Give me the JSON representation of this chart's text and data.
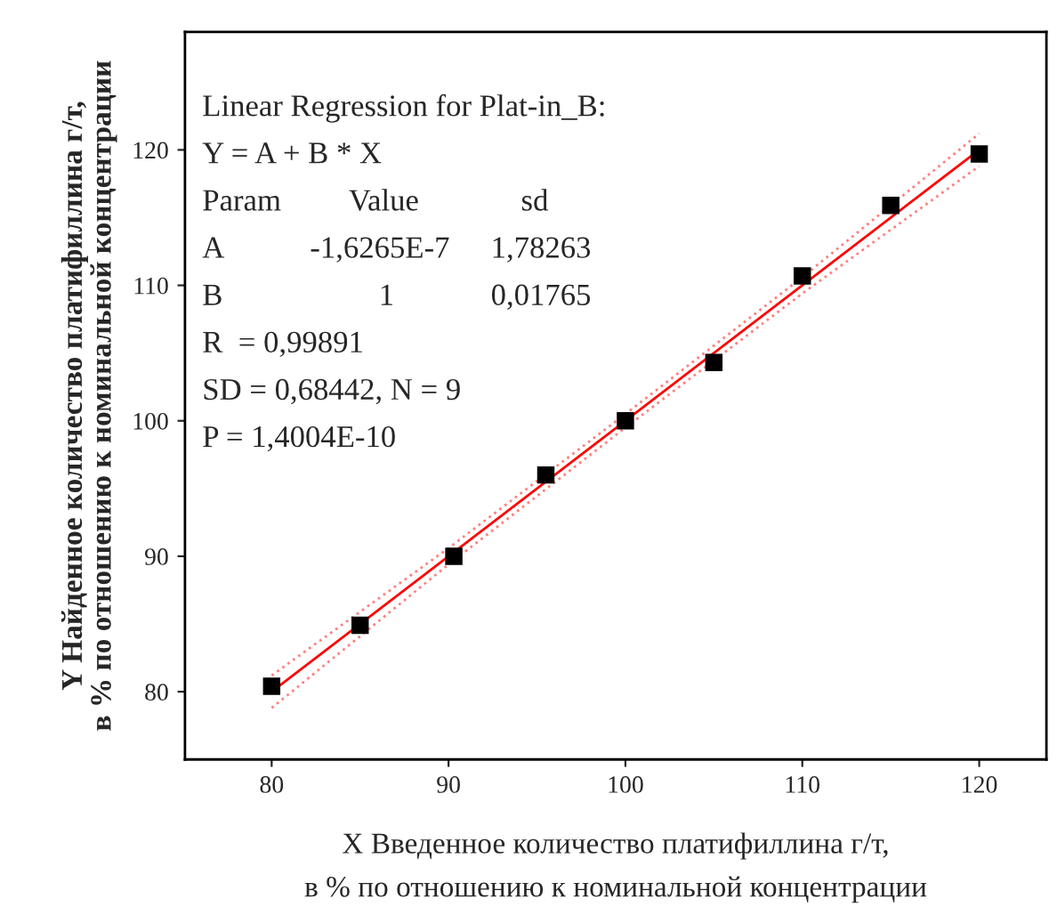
{
  "chart_data": {
    "type": "scatter",
    "xlabel": "X Введенное количество платифиллина г/т,\nв % по отношению к номинальной концентрации",
    "ylabel": "Y Найденное количество платифиллина г/т,\nв % по отношению к номинальной концентрации",
    "x": [
      80,
      85,
      90.3,
      95.5,
      100,
      105,
      110,
      115,
      120
    ],
    "series": [
      {
        "color": "#000000",
        "marker": "square",
        "values": [
          80.4,
          84.9,
          90.0,
          96.0,
          100.0,
          104.3,
          110.7,
          115.9,
          119.7
        ]
      },
      {
        "type": "line",
        "color": "#ff0000",
        "line_style": "solid",
        "x": [
          80,
          120
        ],
        "values": [
          80,
          120
        ]
      },
      {
        "type": "line",
        "color": "#ff8080",
        "line_style": "dotted",
        "x": [
          80,
          90,
          100,
          110,
          120
        ],
        "values": [
          81.2,
          90.6,
          100.5,
          110.6,
          121.2
        ]
      },
      {
        "type": "line",
        "color": "#ff8080",
        "line_style": "dotted",
        "x": [
          80,
          90,
          100,
          110,
          120
        ],
        "values": [
          78.8,
          89.4,
          99.5,
          109.4,
          118.8
        ]
      }
    ],
    "xlim": [
      75.1,
      123.8
    ],
    "ylim": [
      75,
      128.7
    ],
    "xticks": [
      80,
      90,
      100,
      110,
      120
    ],
    "yticks": [
      80,
      90,
      100,
      110,
      120
    ],
    "grid": false,
    "annotations": [
      "Linear Regression for Plat-in_B:",
      "Y = A + B * X",
      "Param",
      "Value",
      "sd",
      "A",
      "-1,6265E-7",
      "1,78263",
      "B",
      "1",
      "0,01765",
      "R  = 0,99891",
      "SD = 0,68442, N = 9",
      "P = 1,4004E-10"
    ]
  }
}
